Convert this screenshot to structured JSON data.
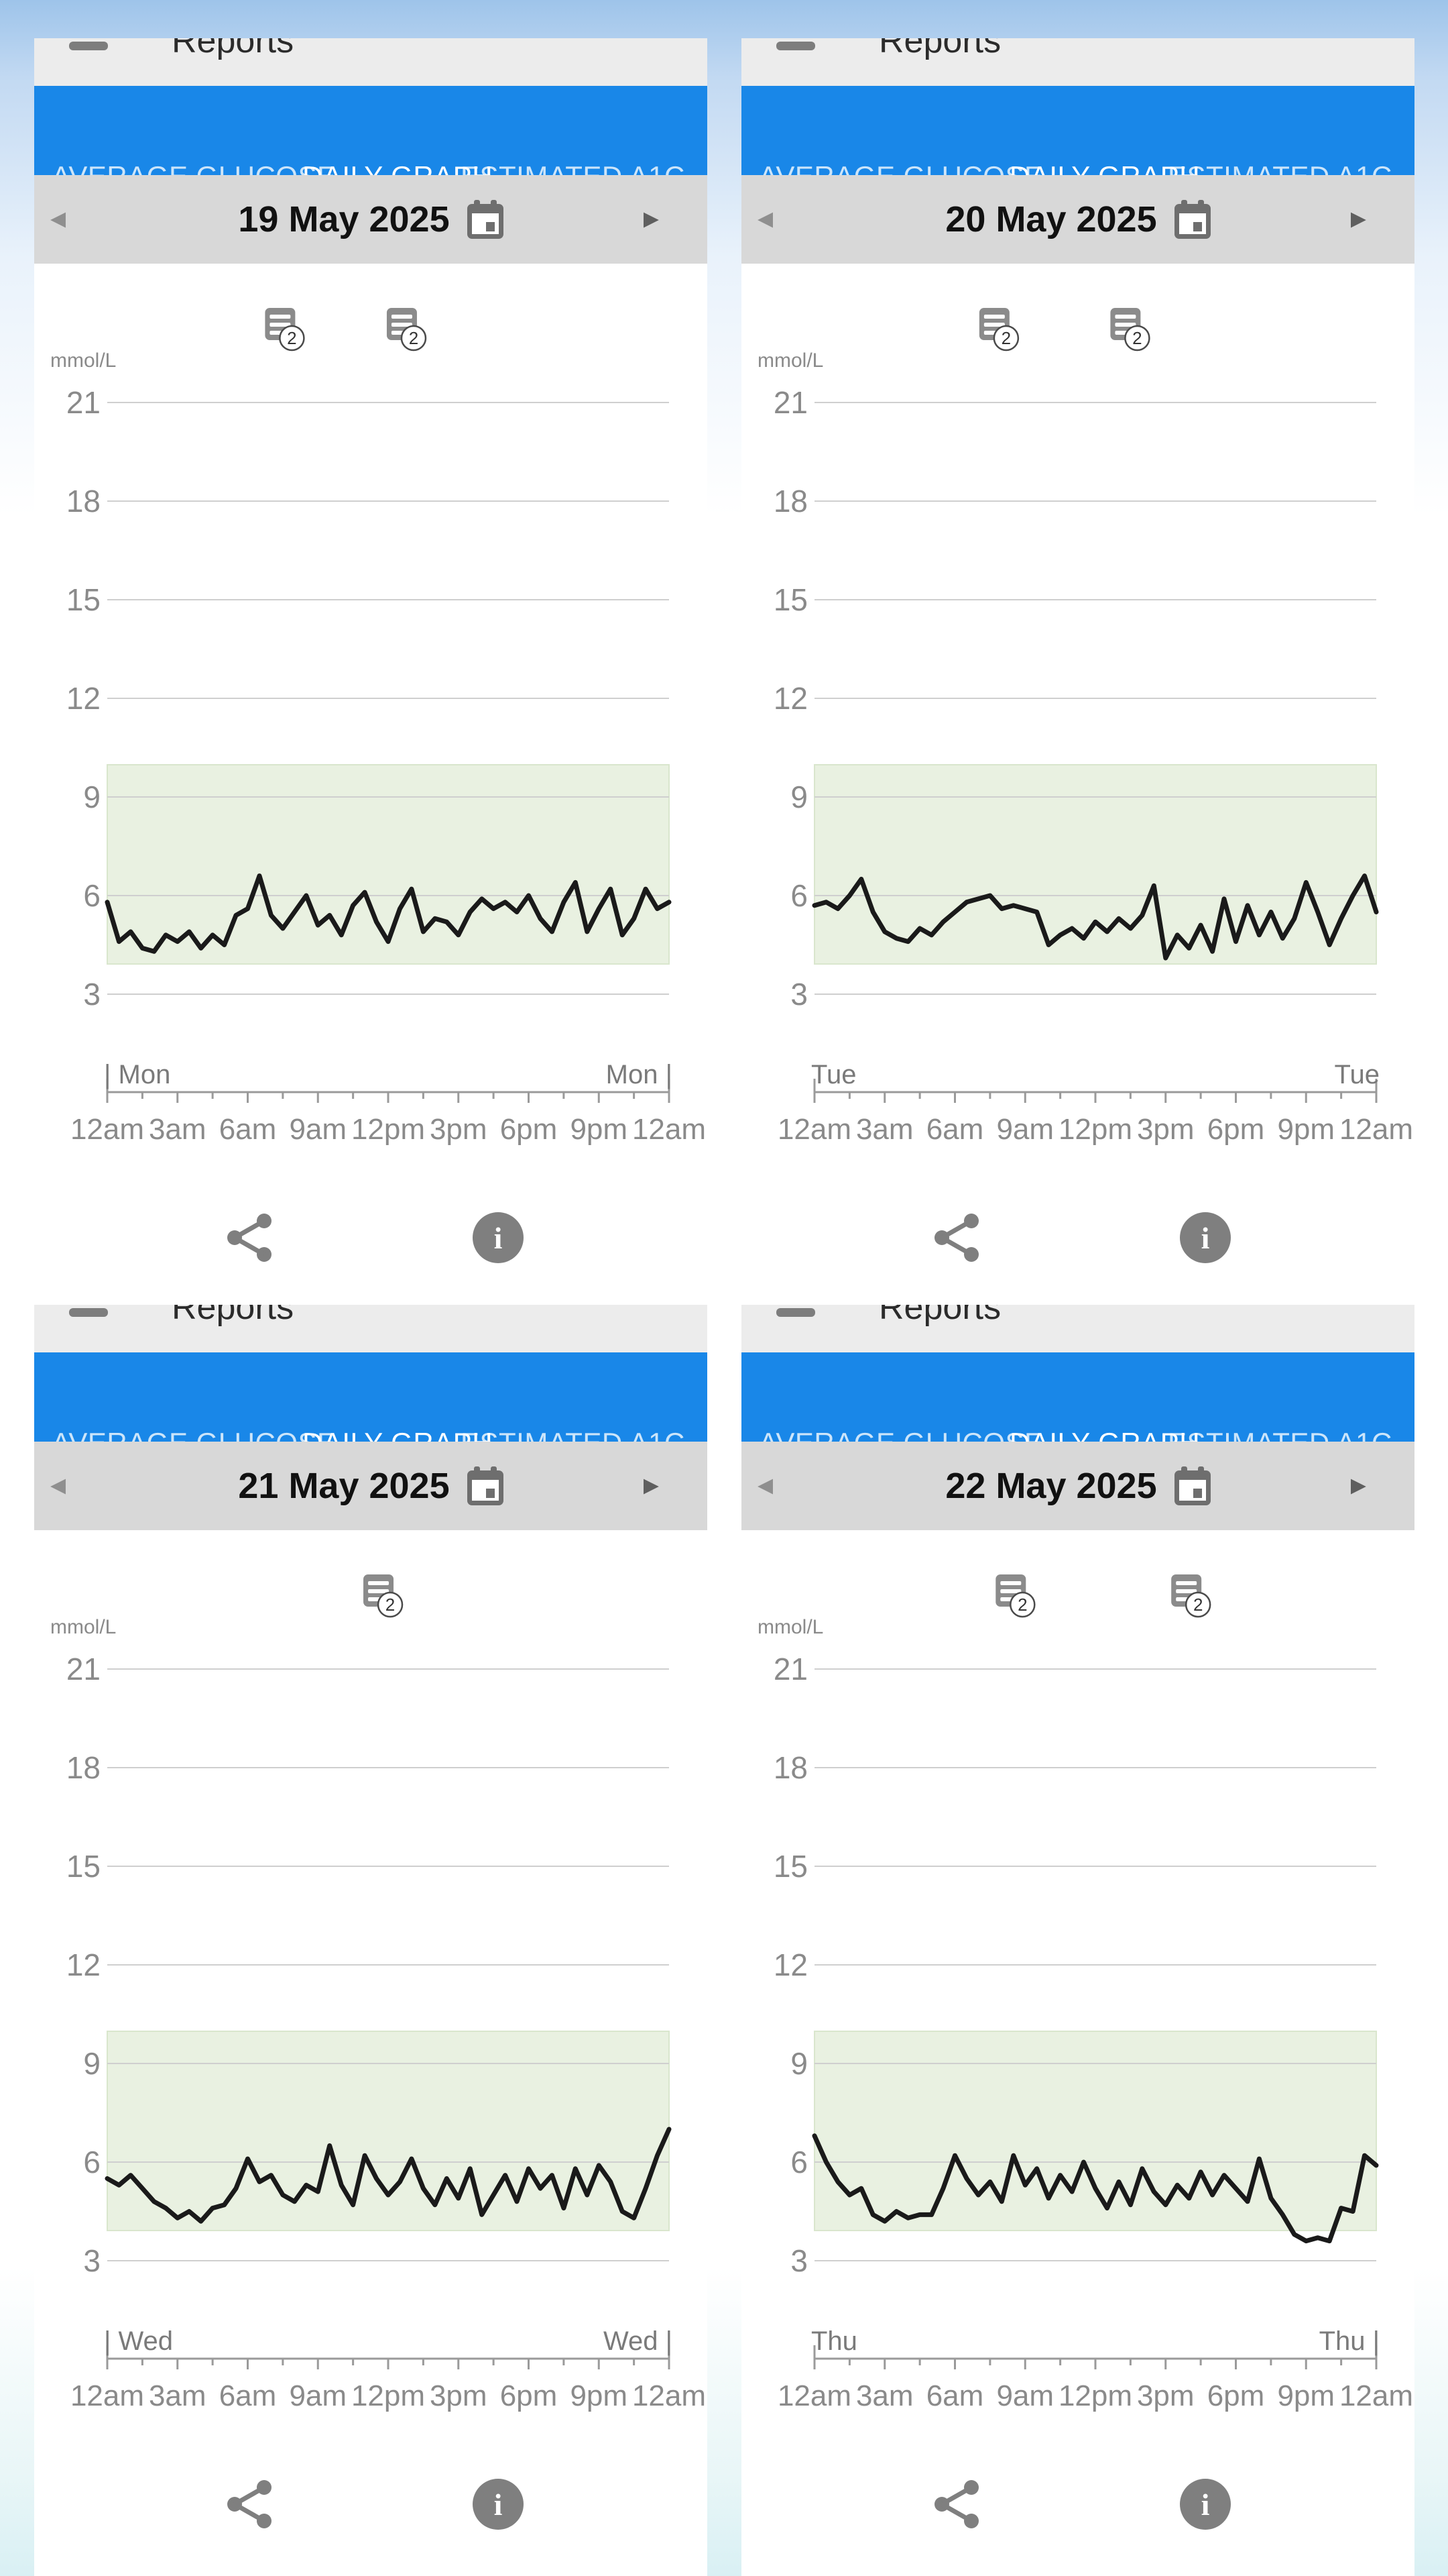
{
  "app_bar": {
    "title": "Reports",
    "menu_icon": "hamburger-icon"
  },
  "tab_bar": {
    "tabs": [
      "AVERAGE GLUCOSE",
      "DAILY GRAPH",
      "ESTIMATED A1C"
    ],
    "active": "DAILY GRAPH",
    "partial_next": "S"
  },
  "date_nav": {
    "prev": "◂",
    "next": "▸"
  },
  "footer": {
    "share_icon": "share",
    "info_icon": "info",
    "info_glyph": "i"
  },
  "colors": {
    "tab_blue": "#1987e8",
    "header_gray": "#ececec",
    "datebar_gray": "#d8d8d8",
    "target_band_green": "#e9f1e1",
    "band_edge": "#d9e6cd",
    "glucose_line": "#1a1a1a",
    "grid_gray": "#cfcfcf",
    "axis_gray": "#9a9a9a",
    "label_gray": "#8a8a8a",
    "icon_gray": "#7f7f7f",
    "note_gray": "#8b8b8b"
  },
  "chart_data": {
    "type": "line",
    "unit": "mmol/L",
    "y_ticks": [
      21,
      18,
      15,
      12,
      9,
      6,
      3
    ],
    "y_axis_range": [
      1.5,
      22.5
    ],
    "target_range": [
      3.9,
      10.0
    ],
    "x_tick_labels": [
      "12am",
      "3am",
      "6am",
      "9am",
      "12pm",
      "3pm",
      "6pm",
      "9pm",
      "12am"
    ],
    "x_hours_step": 0.5,
    "grid": true,
    "legend": "none",
    "days": [
      {
        "date": "19 May 2025",
        "day_label_left": "| Mon",
        "day_label_right": "Mon |",
        "note_markers": [
          {
            "hour": 7.4,
            "count": "2"
          },
          {
            "hour": 12.6,
            "count": "2"
          }
        ],
        "glucose": [
          5.8,
          4.6,
          4.9,
          4.4,
          4.3,
          4.8,
          4.6,
          4.9,
          4.4,
          4.8,
          4.5,
          5.4,
          5.6,
          6.6,
          5.4,
          5.0,
          5.5,
          6.0,
          5.1,
          5.4,
          4.8,
          5.7,
          6.1,
          5.2,
          4.6,
          5.6,
          6.2,
          4.9,
          5.3,
          5.2,
          4.8,
          5.5,
          5.9,
          5.6,
          5.8,
          5.5,
          6.0,
          5.3,
          4.9,
          5.8,
          6.4,
          4.9,
          5.6,
          6.2,
          4.8,
          5.3,
          6.2,
          5.6,
          5.8
        ]
      },
      {
        "date": "20 May 2025",
        "day_label_left": "Tue",
        "day_label_right": "Tue",
        "note_markers": [
          {
            "hour": 7.7,
            "count": "2"
          },
          {
            "hour": 13.3,
            "count": "2"
          }
        ],
        "glucose": [
          5.7,
          5.8,
          5.6,
          6.0,
          6.5,
          5.5,
          4.9,
          4.7,
          4.6,
          5.0,
          4.8,
          5.2,
          5.5,
          5.8,
          5.9,
          6.0,
          5.6,
          5.7,
          5.6,
          5.5,
          4.5,
          4.8,
          5.0,
          4.7,
          5.2,
          4.9,
          5.3,
          5.0,
          5.4,
          6.3,
          4.1,
          4.8,
          4.4,
          5.1,
          4.3,
          5.9,
          4.6,
          5.7,
          4.8,
          5.5,
          4.7,
          5.3,
          6.4,
          5.5,
          4.5,
          5.3,
          6.0,
          6.6,
          5.5
        ]
      },
      {
        "date": "21 May 2025",
        "day_label_left": "| Wed",
        "day_label_right": "Wed |",
        "note_markers": [
          {
            "hour": 11.6,
            "count": "2"
          }
        ],
        "glucose": [
          5.5,
          5.3,
          5.6,
          5.2,
          4.8,
          4.6,
          4.3,
          4.5,
          4.2,
          4.6,
          4.7,
          5.2,
          6.1,
          5.4,
          5.6,
          5.0,
          4.8,
          5.3,
          5.1,
          6.5,
          5.3,
          4.7,
          6.2,
          5.5,
          5.0,
          5.4,
          6.1,
          5.2,
          4.7,
          5.5,
          4.9,
          5.8,
          4.4,
          5.0,
          5.6,
          4.8,
          5.8,
          5.2,
          5.6,
          4.6,
          5.8,
          5.0,
          5.9,
          5.4,
          4.5,
          4.3,
          5.2,
          6.2,
          7.0
        ]
      },
      {
        "date": "22 May 2025",
        "day_label_left": "Thu",
        "day_label_right": "Thu |",
        "note_markers": [
          {
            "hour": 8.4,
            "count": "2"
          },
          {
            "hour": 15.9,
            "count": "2"
          }
        ],
        "glucose": [
          6.8,
          6.0,
          5.4,
          5.0,
          5.2,
          4.4,
          4.2,
          4.5,
          4.3,
          4.4,
          4.4,
          5.2,
          6.2,
          5.5,
          5.0,
          5.4,
          4.8,
          6.2,
          5.3,
          5.8,
          4.9,
          5.6,
          5.1,
          6.0,
          5.2,
          4.6,
          5.4,
          4.7,
          5.8,
          5.1,
          4.7,
          5.3,
          4.9,
          5.7,
          5.0,
          5.6,
          5.2,
          4.8,
          6.1,
          4.9,
          4.4,
          3.8,
          3.6,
          3.7,
          3.6,
          4.6,
          4.5,
          6.2,
          5.9
        ]
      }
    ]
  }
}
